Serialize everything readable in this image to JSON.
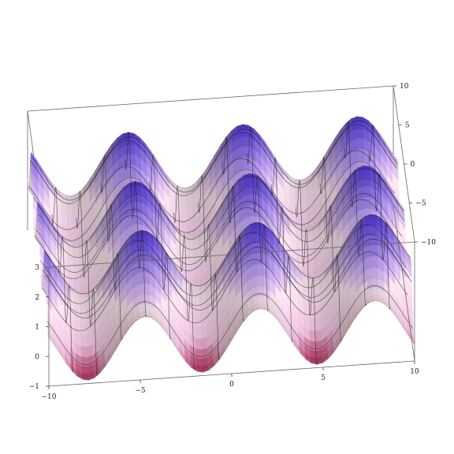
{
  "chart_data": {
    "type": "surface3d",
    "title": "",
    "xlabel": "",
    "ylabel": "",
    "zlabel": "",
    "function": "sin(x)+cos(y)+1",
    "xlim": [
      -10,
      10
    ],
    "ylim": [
      -10,
      10
    ],
    "zlim": [
      -1,
      3
    ],
    "mesh": 15,
    "x_ticks": [
      {
        "value": -10,
        "label": "−10"
      },
      {
        "value": -5,
        "label": "−5"
      },
      {
        "value": 0,
        "label": "0"
      },
      {
        "value": 5,
        "label": "5"
      },
      {
        "value": 10,
        "label": "10"
      }
    ],
    "y_ticks": [
      {
        "value": -10,
        "label": "−10"
      },
      {
        "value": -5,
        "label": "−5"
      },
      {
        "value": 0,
        "label": "0"
      },
      {
        "value": 5,
        "label": "5"
      },
      {
        "value": 10,
        "label": "10"
      }
    ],
    "z_ticks": [
      {
        "value": -1,
        "label": "−1"
      },
      {
        "value": 0,
        "label": "0"
      },
      {
        "value": 1,
        "label": "1"
      },
      {
        "value": 2,
        "label": "2"
      },
      {
        "value": 3,
        "label": "3"
      }
    ],
    "colors": {
      "high": "#5a3fe0",
      "mid": "#f3c6e6",
      "low": "#c23a6a",
      "warm": "#f6dcb0",
      "mesh": "#1a1a1a"
    }
  }
}
